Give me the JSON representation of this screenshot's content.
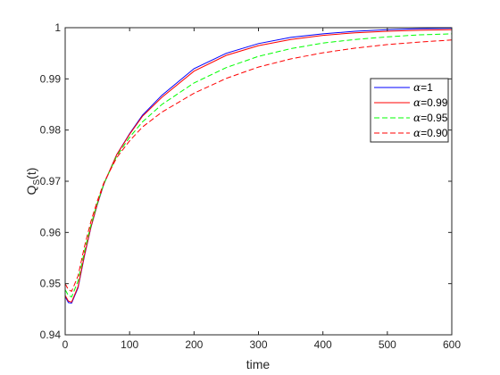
{
  "chart_data": {
    "type": "line",
    "title": "",
    "xlabel": "time",
    "ylabel": "Q",
    "ylabel_sub": "S",
    "ylabel_suffix": "(t)",
    "xlim": [
      0,
      600
    ],
    "ylim": [
      0.94,
      1.0
    ],
    "xticks": [
      "0",
      "100",
      "200",
      "300",
      "400",
      "500",
      "600"
    ],
    "yticks": [
      "0.94",
      "0.95",
      "0.96",
      "0.97",
      "0.98",
      "0.99",
      "1"
    ],
    "xtick_values": [
      0,
      100,
      200,
      300,
      400,
      500,
      600
    ],
    "ytick_values": [
      0.94,
      0.95,
      0.96,
      0.97,
      0.98,
      0.99,
      1.0
    ],
    "grid": false,
    "legend_position": "right",
    "series": [
      {
        "name": "α=1",
        "legend_symbol": "α",
        "legend_value": "=1",
        "color": "#0000ff",
        "dash": "solid",
        "x": [
          0,
          5,
          10,
          20,
          30,
          40,
          50,
          60,
          80,
          100,
          120,
          150,
          200,
          250,
          300,
          350,
          400,
          450,
          500,
          550,
          600
        ],
        "y": [
          0.9475,
          0.9463,
          0.9462,
          0.9492,
          0.9555,
          0.961,
          0.9655,
          0.9694,
          0.9752,
          0.9793,
          0.9829,
          0.9868,
          0.992,
          0.995,
          0.9969,
          0.9981,
          0.9988,
          0.9993,
          0.9996,
          0.9998,
          0.9999
        ]
      },
      {
        "name": "α=0.99",
        "legend_symbol": "α",
        "legend_value": "=0.99",
        "color": "#ff0000",
        "dash": "solid",
        "x": [
          0,
          5,
          10,
          20,
          30,
          40,
          50,
          60,
          80,
          100,
          120,
          150,
          200,
          250,
          300,
          350,
          400,
          450,
          500,
          550,
          600
        ],
        "y": [
          0.9477,
          0.9466,
          0.9464,
          0.9494,
          0.9557,
          0.9611,
          0.9656,
          0.9695,
          0.9752,
          0.9792,
          0.9827,
          0.9864,
          0.9915,
          0.9946,
          0.9965,
          0.9977,
          0.9985,
          0.999,
          0.9993,
          0.9995,
          0.9996
        ]
      },
      {
        "name": "α=0.95",
        "legend_symbol": "α",
        "legend_value": "=0.95",
        "color": "#00ff00",
        "dash": "dashed",
        "x": [
          0,
          5,
          10,
          20,
          30,
          40,
          50,
          60,
          80,
          100,
          120,
          150,
          200,
          250,
          300,
          350,
          400,
          450,
          500,
          550,
          600
        ],
        "y": [
          0.9488,
          0.9477,
          0.9474,
          0.9505,
          0.9564,
          0.9615,
          0.9658,
          0.9695,
          0.9749,
          0.9786,
          0.9816,
          0.985,
          0.9892,
          0.9922,
          0.9944,
          0.9959,
          0.997,
          0.9977,
          0.9982,
          0.9986,
          0.9988
        ]
      },
      {
        "name": "α=0.90",
        "legend_symbol": "α",
        "legend_value": "=0.90",
        "color": "#ff0000",
        "dash": "dashed",
        "x": [
          0,
          5,
          10,
          20,
          30,
          40,
          50,
          60,
          80,
          100,
          120,
          150,
          200,
          250,
          300,
          350,
          400,
          450,
          500,
          550,
          600
        ],
        "y": [
          0.95,
          0.9488,
          0.9485,
          0.9515,
          0.9573,
          0.9622,
          0.9662,
          0.9697,
          0.9746,
          0.9779,
          0.9806,
          0.9835,
          0.9872,
          0.9901,
          0.9923,
          0.9939,
          0.9951,
          0.996,
          0.9967,
          0.9972,
          0.9976
        ]
      }
    ]
  }
}
